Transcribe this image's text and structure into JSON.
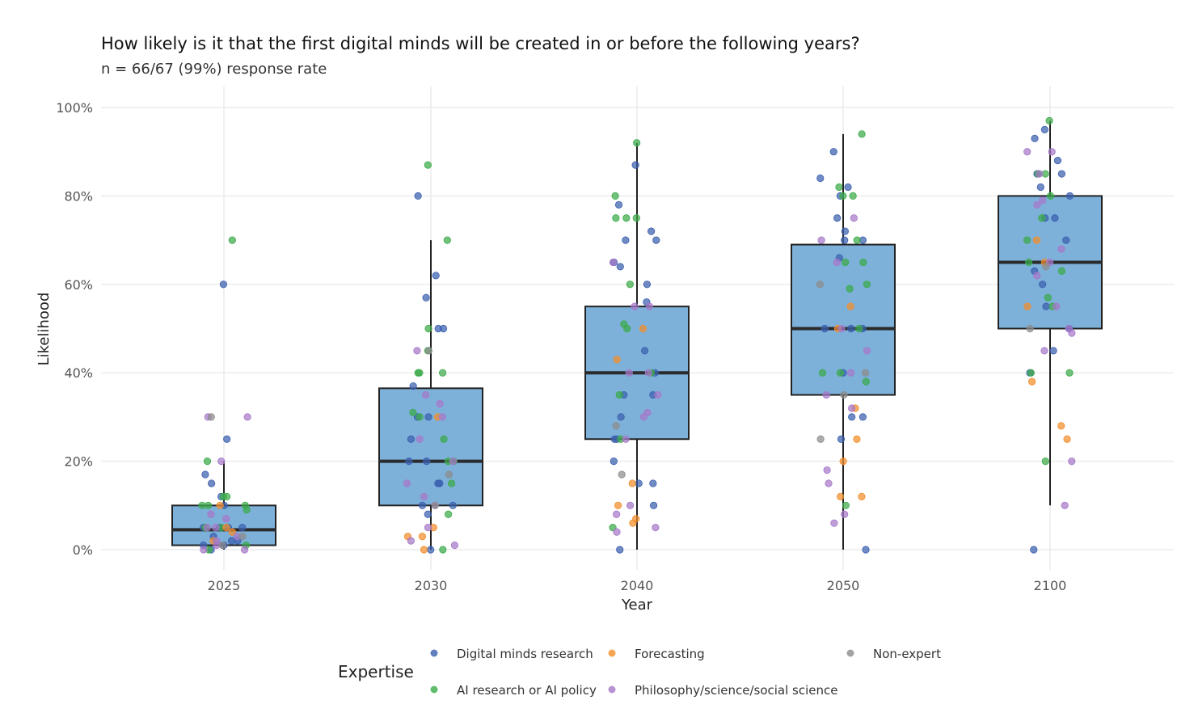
{
  "chart_data": {
    "type": "box",
    "title": "How likely is it that the first digital minds will be created in or before the following years?",
    "subtitle": "n = 66/67 (99%) response rate",
    "xlabel": "Year",
    "ylabel": "Likelihood",
    "categories": [
      "2025",
      "2030",
      "2040",
      "2050",
      "2100"
    ],
    "ylim": [
      0,
      100
    ],
    "y_ticks": [
      "0%",
      "20%",
      "40%",
      "60%",
      "80%",
      "100%"
    ],
    "grid": true,
    "legend_title": "Expertise",
    "legend_position": "bottom",
    "colors": {
      "box_fill": "#6fa8d6",
      "box_stroke": "#222222",
      "grid": "#ececec",
      "digital": "#3a5fae",
      "forecasting": "#f28e2b",
      "nonexpert": "#8c8c8c",
      "ai": "#3bab4a",
      "philosophy": "#a678c9"
    },
    "legend": [
      {
        "key": "digital",
        "label": "Digital minds research"
      },
      {
        "key": "forecasting",
        "label": "Forecasting"
      },
      {
        "key": "nonexpert",
        "label": "Non-expert"
      },
      {
        "key": "ai",
        "label": "AI research or AI policy"
      },
      {
        "key": "philosophy",
        "label": "Philosophy/science/social science"
      }
    ],
    "boxes": [
      {
        "category": "2025",
        "q1": 1,
        "median": 4.5,
        "q3": 10,
        "whisker_low": 0,
        "whisker_high": 20
      },
      {
        "category": "2030",
        "q1": 10,
        "median": 20,
        "q3": 36.5,
        "whisker_low": 0,
        "whisker_high": 70
      },
      {
        "category": "2040",
        "q1": 25,
        "median": 40,
        "q3": 55,
        "whisker_low": 0,
        "whisker_high": 92
      },
      {
        "category": "2050",
        "q1": 35,
        "median": 50,
        "q3": 69,
        "whisker_low": 0,
        "whisker_high": 94
      },
      {
        "category": "2100",
        "q1": 50,
        "median": 65,
        "q3": 80,
        "whisker_low": 10,
        "whisker_high": 97
      }
    ],
    "points": [
      {
        "category": "2025",
        "values": {
          "digital": [
            60,
            25,
            17,
            15,
            12,
            10,
            5,
            5,
            5,
            5,
            3,
            2,
            2,
            1,
            1,
            0
          ],
          "ai": [
            70,
            20,
            12,
            12,
            10,
            10,
            10,
            9,
            5,
            5,
            1,
            0
          ],
          "forecasting": [
            10,
            5,
            4,
            2
          ],
          "philosophy": [
            30,
            30,
            20,
            8,
            7,
            5,
            5,
            3,
            2,
            1,
            0,
            0
          ],
          "nonexpert": [
            30,
            3,
            1
          ]
        }
      },
      {
        "category": "2030",
        "values": {
          "digital": [
            80,
            62,
            57,
            50,
            50,
            37,
            30,
            30,
            25,
            20,
            20,
            15,
            15,
            10,
            10,
            8,
            0
          ],
          "ai": [
            87,
            70,
            50,
            45,
            40,
            40,
            40,
            31,
            30,
            25,
            20,
            20,
            15,
            8,
            0
          ],
          "forecasting": [
            30,
            5,
            3,
            3,
            0
          ],
          "philosophy": [
            45,
            35,
            33,
            30,
            25,
            20,
            15,
            12,
            10,
            5,
            2,
            1
          ],
          "nonexpert": [
            45,
            17,
            10
          ]
        }
      },
      {
        "category": "2040",
        "values": {
          "digital": [
            87,
            78,
            72,
            70,
            70,
            65,
            64,
            60,
            56,
            45,
            40,
            35,
            35,
            30,
            25,
            25,
            20,
            15,
            15,
            10,
            0
          ],
          "ai": [
            92,
            80,
            75,
            75,
            75,
            60,
            51,
            50,
            40,
            35,
            25,
            5
          ],
          "forecasting": [
            50,
            43,
            15,
            10,
            7,
            6
          ],
          "philosophy": [
            65,
            55,
            55,
            40,
            40,
            35,
            31,
            30,
            25,
            10,
            8,
            5,
            4
          ],
          "nonexpert": [
            28,
            17
          ]
        }
      },
      {
        "category": "2050",
        "values": {
          "digital": [
            90,
            84,
            82,
            80,
            75,
            72,
            70,
            70,
            66,
            50,
            50,
            50,
            40,
            30,
            30,
            25,
            0
          ],
          "ai": [
            94,
            82,
            80,
            80,
            70,
            65,
            65,
            60,
            59,
            50,
            40,
            40,
            38,
            10
          ],
          "forecasting": [
            55,
            50,
            32,
            25,
            20,
            12,
            12
          ],
          "philosophy": [
            75,
            70,
            65,
            50,
            45,
            40,
            35,
            32,
            18,
            15,
            8,
            6
          ],
          "nonexpert": [
            60,
            40,
            35,
            25
          ]
        }
      },
      {
        "category": "2100",
        "values": {
          "digital": [
            95,
            93,
            88,
            85,
            85,
            82,
            80,
            75,
            75,
            70,
            63,
            60,
            55,
            50,
            45,
            40,
            0
          ],
          "ai": [
            97,
            85,
            85,
            80,
            75,
            70,
            65,
            63,
            57,
            55,
            40,
            40,
            20
          ],
          "forecasting": [
            70,
            65,
            55,
            38,
            28,
            25
          ],
          "philosophy": [
            90,
            90,
            85,
            79,
            78,
            68,
            65,
            62,
            55,
            50,
            49,
            45,
            20,
            10
          ],
          "nonexpert": [
            64,
            50
          ]
        }
      }
    ]
  }
}
